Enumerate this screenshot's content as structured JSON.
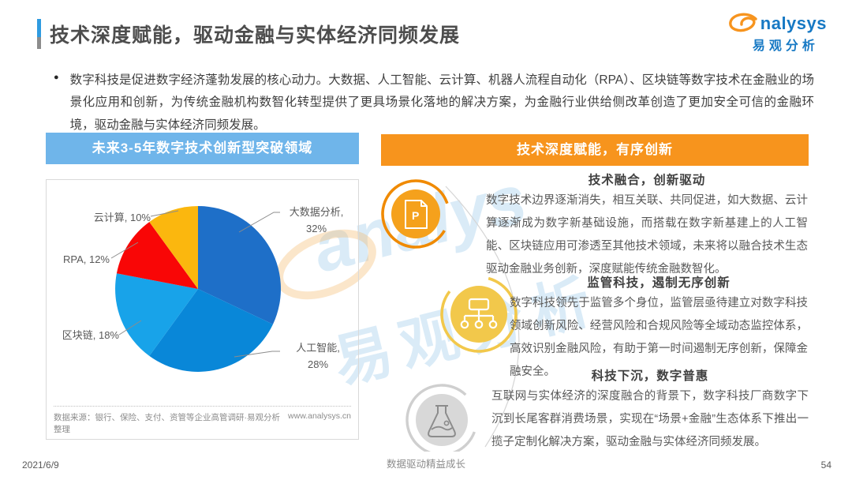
{
  "header": {
    "title": "技术深度赋能，驱动金融与实体经济同频发展",
    "logo_en": "nalysys",
    "logo_cn": "易观分析"
  },
  "intro": {
    "text": "数字科技是促进数字经济蓬勃发展的核心动力。大数据、人工智能、云计算、机器人流程自动化（RPA）、区块链等数字技术在金融业的场景化应用和创新，为传统金融机构数智化转型提供了更具场景化落地的解决方案，为金融行业供给侧改革创造了更加安全可信的金融环境，驱动金融与实体经济同频发展。"
  },
  "left_panel": {
    "header": "未来3-5年数字技术创新型突破领域",
    "source": "数据来源：银行、保险、支付、资管等企业高管调研·易观分析整理",
    "url": "www.analysys.cn"
  },
  "chart_data": {
    "type": "pie",
    "title": "未来3-5年数字技术创新型突破领域",
    "labels": [
      "大数据分析",
      "人工智能",
      "区块链",
      "RPA",
      "云计算"
    ],
    "values": [
      32,
      28,
      18,
      12,
      10
    ],
    "colors": [
      "#1e6fc8",
      "#0987d8",
      "#18a3e9",
      "#f90606",
      "#fbb70e"
    ],
    "start_angle_deg": -90,
    "direction": "clockwise",
    "legend_position": "callout-labels"
  },
  "right_panel": {
    "header": "技术深度赋能，有序创新",
    "items": [
      {
        "icon": "ppt-document-icon",
        "heading": "技术融合，创新驱动",
        "body": "数字技术边界逐渐消失，相互关联、共同促进，如大数据、云计算逐渐成为数字新基础设施，而搭载在数字新基建上的人工智能、区块链应用可渗透至其他技术领域，未来将以融合技术生态驱动金融业务创新，深度赋能传统金融数智化。"
      },
      {
        "icon": "sitemap-icon",
        "heading": "监管科技，遏制无序创新",
        "body": "数字科技领先于监管多个身位，监管层亟待建立对数字科技领域创新风险、经营风险和合规风险等全域动态监控体系，高效识别金融风险，有助于第一时间遏制无序创新，保障金融安全。"
      },
      {
        "icon": "flask-icon",
        "heading": "科技下沉，数字普惠",
        "body": "互联网与实体经济的深度融合的背景下，数字科技厂商数字下沉到长尾客群消费场景，实现在“场景+金融”生态体系下推出一揽子定制化解决方案，驱动金融与实体经济同频发展。"
      }
    ]
  },
  "watermark": {
    "en": "analys",
    "cn": "易观分析"
  },
  "colors": {
    "accent_blue_header": "#6fb5ea",
    "accent_orange_header": "#f7941d",
    "icon_orange": "#f5a11c",
    "icon_yellow": "#f2c84b",
    "icon_gray": "#d8d8d8",
    "logo_blue": "#1779c4"
  },
  "footer": {
    "date": "2021/6/9",
    "slogan": "数据驱动精益成长",
    "page": "54"
  }
}
